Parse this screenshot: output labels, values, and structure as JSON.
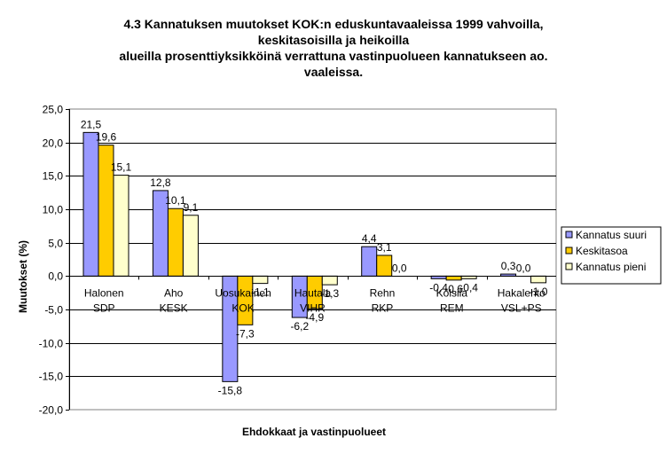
{
  "chart_data": {
    "type": "bar",
    "title_lines": [
      "4.3 Kannatuksen muutokset KOK:n eduskuntavaaleissa 1999 vahvoilla,",
      "keskitasoisilla ja heikoilla",
      "alueilla prosenttiyksikköinä verrattuna vastinpuolueen kannatukseen ao.",
      "vaaleissa."
    ],
    "xlabel": "Ehdokkaat ja vastinpuolueet",
    "ylabel": "Muutokset (%)",
    "ylim": [
      -20,
      25
    ],
    "ytick_step": 5,
    "ytick_labels": [
      "-20,0",
      "-15,0",
      "-10,0",
      "-5,0",
      "0,0",
      "5,0",
      "10,0",
      "15,0",
      "20,0",
      "25,0"
    ],
    "grid": true,
    "legend_position": "right",
    "categories": [
      [
        "Halonen",
        "SDP"
      ],
      [
        "Aho",
        "KESK"
      ],
      [
        "Uosukainen",
        "KOK"
      ],
      [
        "Hautala",
        "VIHR"
      ],
      [
        "Rehn",
        "RKP"
      ],
      [
        "Kolsila",
        "REM"
      ],
      [
        "Hakalehto",
        "VSL+PS"
      ]
    ],
    "series": [
      {
        "name": "Kannatus suuri",
        "color": "#9999FF",
        "values": [
          21.5,
          12.8,
          -15.8,
          -6.2,
          4.4,
          -0.4,
          0.3
        ],
        "labels": [
          "21,5",
          "12,8",
          "-15,8",
          "-6,2",
          "4,4",
          "-0,4",
          "0,3"
        ]
      },
      {
        "name": "Keskitasoa",
        "color": "#FFCC00",
        "values": [
          19.6,
          10.1,
          -7.3,
          -4.9,
          3.1,
          -0.6,
          0.0
        ],
        "labels": [
          "19,6",
          "10,1",
          "-7,3",
          "-4,9",
          "3,1",
          "-0,6",
          "0,0"
        ]
      },
      {
        "name": "Kannatus pieni",
        "color": "#FFFFCC",
        "values": [
          15.1,
          9.1,
          -1.1,
          -1.3,
          0.0,
          -0.4,
          -1.0
        ],
        "labels": [
          "15,1",
          "9,1",
          "-1,1",
          "-1,3",
          "0,0",
          "-0,4",
          "-1,0"
        ]
      }
    ]
  }
}
